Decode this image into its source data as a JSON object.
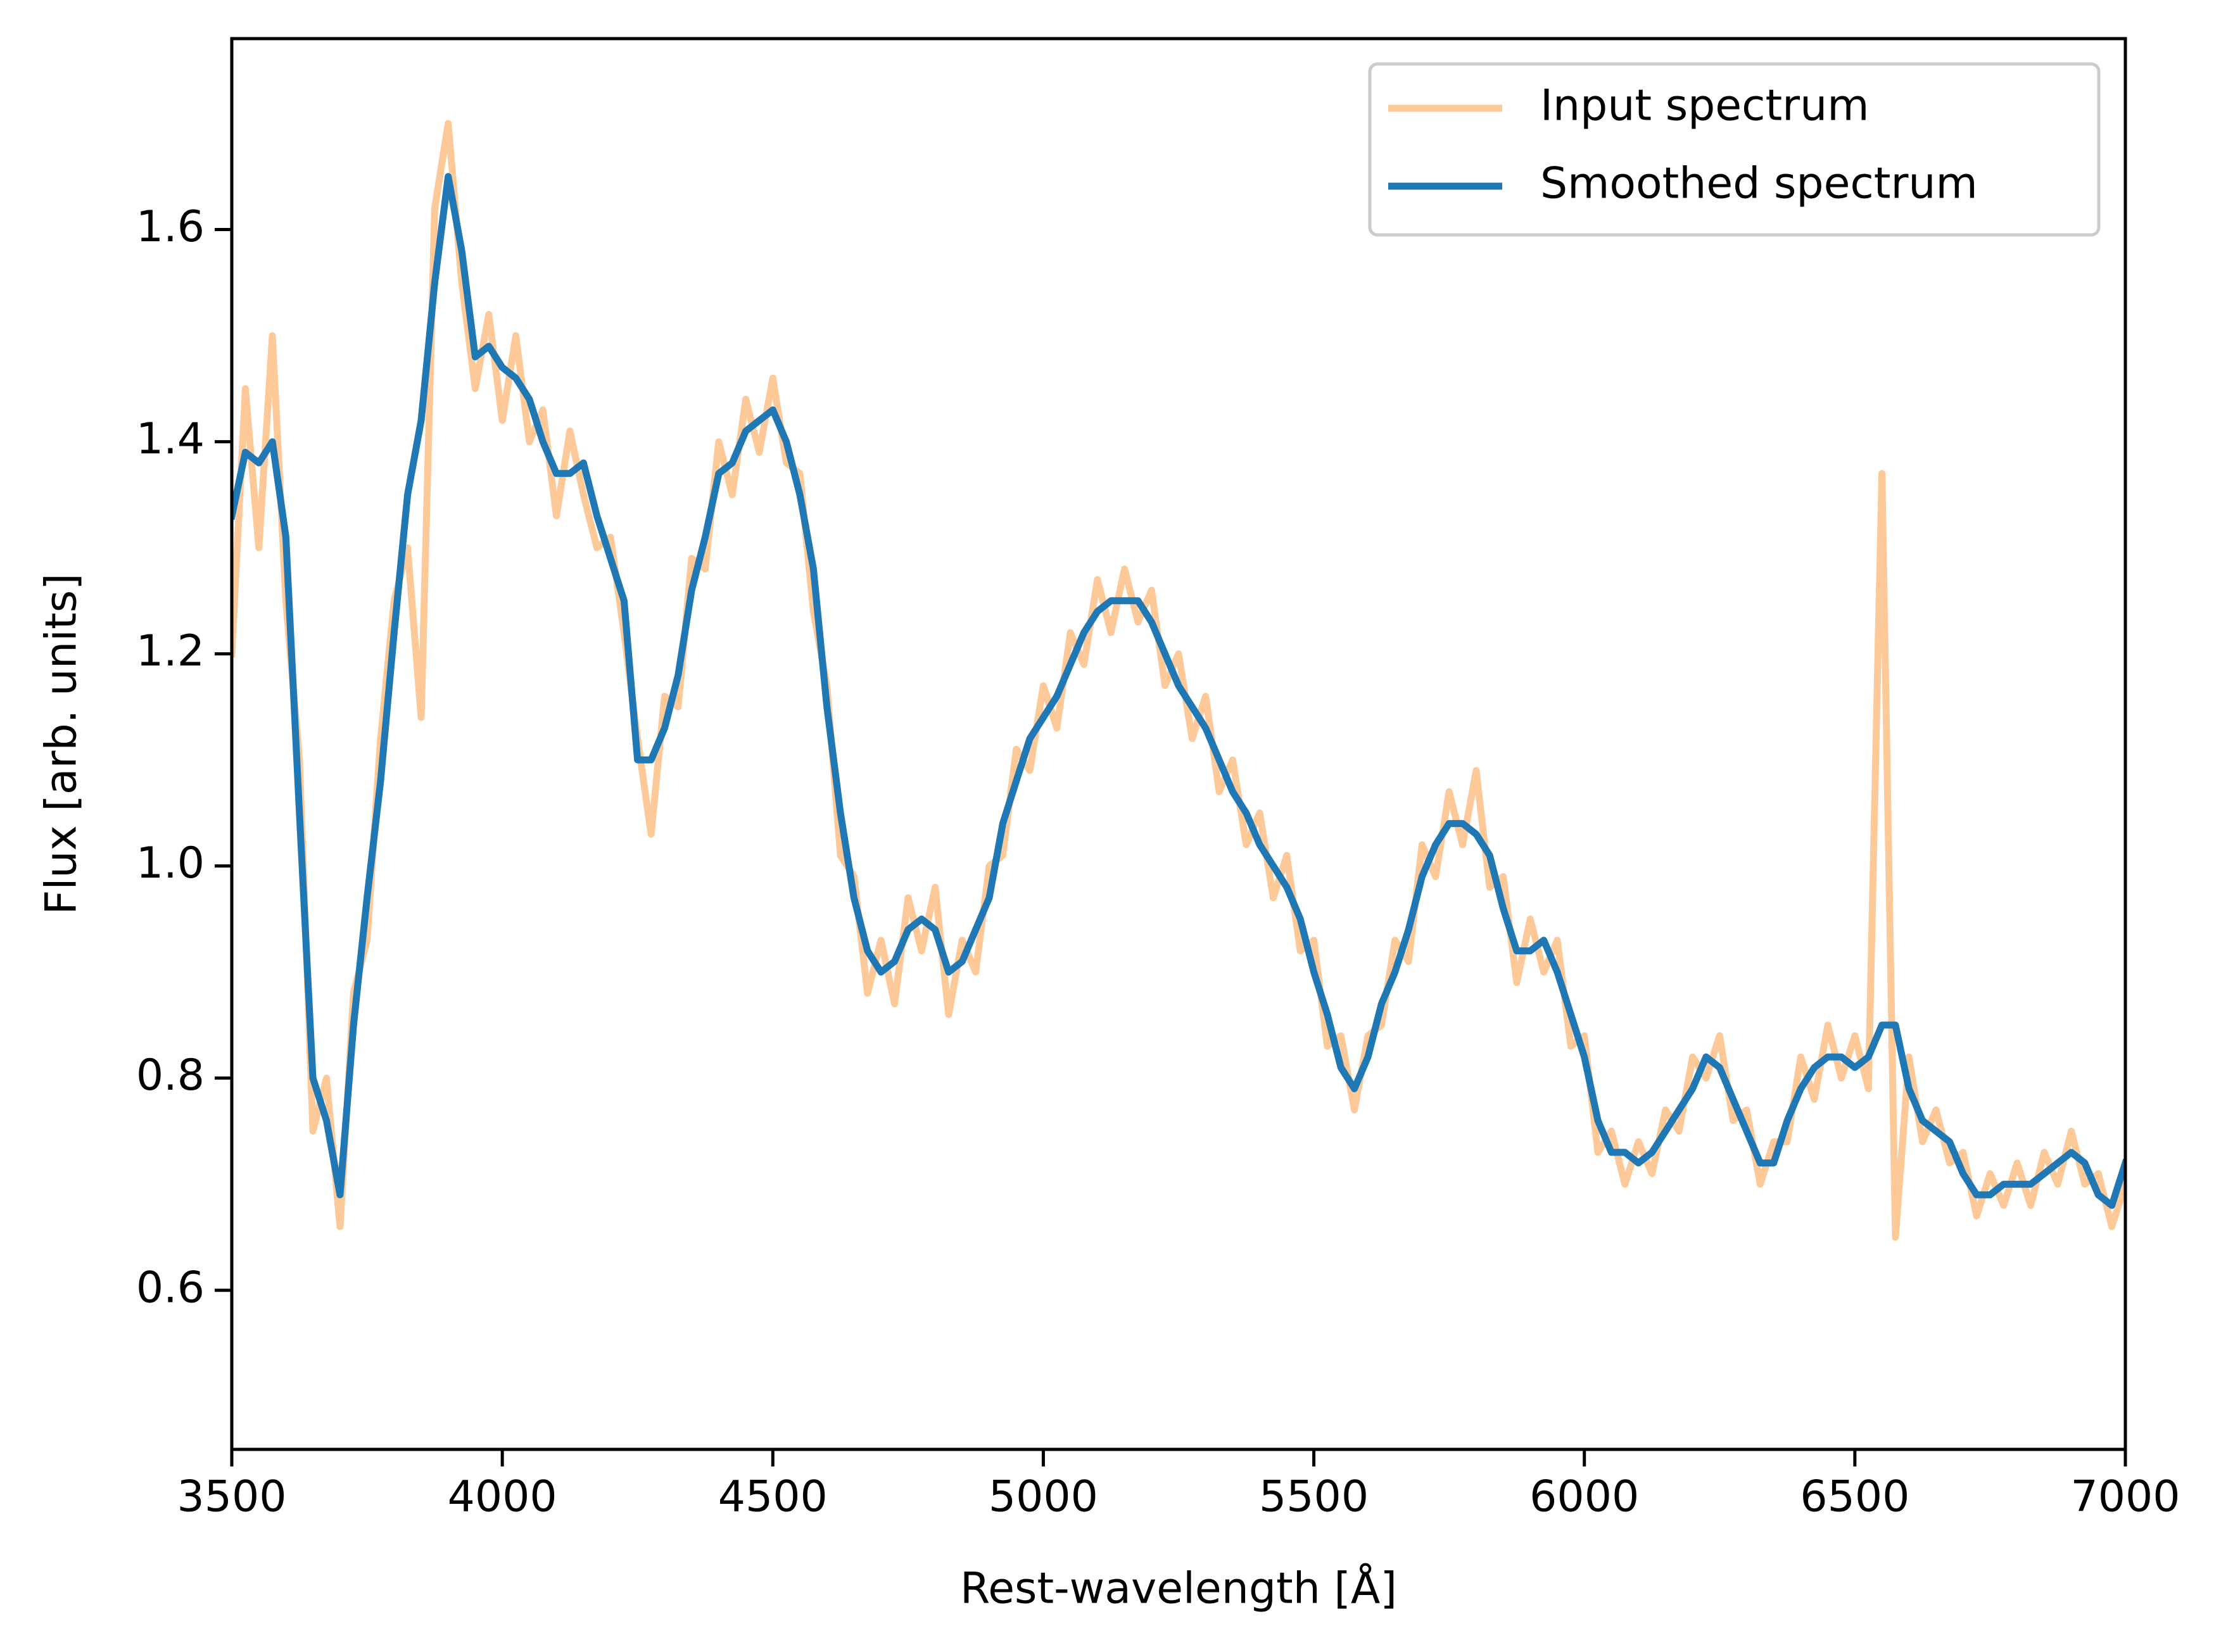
{
  "chart_data": {
    "type": "line",
    "x_label": "Rest-wavelength [Å]",
    "y_label": "Flux [arb. units]",
    "x": [
      3500,
      3525,
      3550,
      3575,
      3600,
      3625,
      3650,
      3675,
      3700,
      3725,
      3750,
      3775,
      3800,
      3825,
      3850,
      3875,
      3900,
      3925,
      3950,
      3975,
      4000,
      4025,
      4050,
      4075,
      4100,
      4125,
      4150,
      4175,
      4200,
      4225,
      4250,
      4275,
      4300,
      4325,
      4350,
      4375,
      4400,
      4425,
      4450,
      4475,
      4500,
      4525,
      4550,
      4575,
      4600,
      4625,
      4650,
      4675,
      4700,
      4725,
      4750,
      4775,
      4800,
      4825,
      4850,
      4875,
      4900,
      4925,
      4950,
      4975,
      5000,
      5025,
      5050,
      5075,
      5100,
      5125,
      5150,
      5175,
      5200,
      5225,
      5250,
      5275,
      5300,
      5325,
      5350,
      5375,
      5400,
      5425,
      5450,
      5475,
      5500,
      5525,
      5550,
      5575,
      5600,
      5625,
      5650,
      5675,
      5700,
      5725,
      5750,
      5775,
      5800,
      5825,
      5850,
      5875,
      5900,
      5925,
      5950,
      5975,
      6000,
      6025,
      6050,
      6075,
      6100,
      6125,
      6150,
      6175,
      6200,
      6225,
      6250,
      6275,
      6300,
      6325,
      6350,
      6375,
      6400,
      6425,
      6450,
      6475,
      6500,
      6525,
      6550,
      6575,
      6600,
      6625,
      6650,
      6675,
      6700,
      6725,
      6750,
      6775,
      6800,
      6825,
      6850,
      6875,
      6900,
      6925,
      6950,
      6975,
      7000
    ],
    "series": [
      {
        "name": "Input spectrum",
        "color": "#fdc999",
        "values": [
          1.2,
          1.45,
          1.3,
          1.5,
          1.25,
          1.1,
          0.75,
          0.8,
          0.66,
          0.88,
          0.93,
          1.12,
          1.25,
          1.3,
          1.14,
          1.62,
          1.7,
          1.55,
          1.45,
          1.52,
          1.42,
          1.5,
          1.4,
          1.43,
          1.33,
          1.41,
          1.35,
          1.3,
          1.31,
          1.22,
          1.12,
          1.03,
          1.16,
          1.15,
          1.29,
          1.28,
          1.4,
          1.35,
          1.44,
          1.39,
          1.46,
          1.38,
          1.37,
          1.24,
          1.17,
          1.01,
          0.99,
          0.88,
          0.93,
          0.87,
          0.97,
          0.92,
          0.98,
          0.86,
          0.93,
          0.9,
          1.0,
          1.01,
          1.11,
          1.09,
          1.17,
          1.13,
          1.22,
          1.19,
          1.27,
          1.22,
          1.28,
          1.23,
          1.26,
          1.17,
          1.2,
          1.12,
          1.16,
          1.07,
          1.1,
          1.02,
          1.05,
          0.97,
          1.01,
          0.92,
          0.93,
          0.83,
          0.84,
          0.77,
          0.84,
          0.85,
          0.93,
          0.91,
          1.02,
          0.99,
          1.07,
          1.02,
          1.09,
          0.98,
          0.99,
          0.89,
          0.95,
          0.9,
          0.93,
          0.83,
          0.84,
          0.73,
          0.75,
          0.7,
          0.74,
          0.71,
          0.77,
          0.75,
          0.82,
          0.8,
          0.84,
          0.76,
          0.77,
          0.7,
          0.74,
          0.74,
          0.82,
          0.78,
          0.85,
          0.8,
          0.84,
          0.79,
          1.37,
          0.65,
          0.82,
          0.74,
          0.77,
          0.72,
          0.73,
          0.67,
          0.71,
          0.68,
          0.72,
          0.68,
          0.73,
          0.7,
          0.75,
          0.7,
          0.71,
          0.66,
          0.7
        ]
      },
      {
        "name": "Smoothed spectrum",
        "color": "#1f77b4",
        "values": [
          1.33,
          1.39,
          1.38,
          1.4,
          1.31,
          1.05,
          0.8,
          0.76,
          0.69,
          0.85,
          0.97,
          1.08,
          1.22,
          1.35,
          1.42,
          1.55,
          1.65,
          1.58,
          1.48,
          1.49,
          1.47,
          1.46,
          1.44,
          1.4,
          1.37,
          1.37,
          1.38,
          1.33,
          1.29,
          1.25,
          1.1,
          1.1,
          1.13,
          1.18,
          1.26,
          1.31,
          1.37,
          1.38,
          1.41,
          1.42,
          1.43,
          1.4,
          1.35,
          1.28,
          1.15,
          1.05,
          0.97,
          0.92,
          0.9,
          0.91,
          0.94,
          0.95,
          0.94,
          0.9,
          0.91,
          0.94,
          0.97,
          1.04,
          1.08,
          1.12,
          1.14,
          1.16,
          1.19,
          1.22,
          1.24,
          1.25,
          1.25,
          1.25,
          1.23,
          1.2,
          1.17,
          1.15,
          1.13,
          1.1,
          1.07,
          1.05,
          1.02,
          1.0,
          0.98,
          0.95,
          0.9,
          0.86,
          0.81,
          0.79,
          0.82,
          0.87,
          0.9,
          0.94,
          0.99,
          1.02,
          1.04,
          1.04,
          1.03,
          1.01,
          0.96,
          0.92,
          0.92,
          0.93,
          0.9,
          0.86,
          0.82,
          0.76,
          0.73,
          0.73,
          0.72,
          0.73,
          0.75,
          0.77,
          0.79,
          0.82,
          0.81,
          0.78,
          0.75,
          0.72,
          0.72,
          0.76,
          0.79,
          0.81,
          0.82,
          0.82,
          0.81,
          0.82,
          0.85,
          0.85,
          0.79,
          0.76,
          0.75,
          0.74,
          0.71,
          0.69,
          0.69,
          0.7,
          0.7,
          0.7,
          0.71,
          0.72,
          0.73,
          0.72,
          0.69,
          0.68,
          0.72
        ]
      }
    ],
    "xlim": [
      3500,
      7000
    ],
    "xticks": [
      3500,
      4000,
      4500,
      5000,
      5500,
      6000,
      6500,
      7000
    ],
    "ylim": [
      0.45,
      1.78
    ],
    "yticks": [
      0.6,
      0.8,
      {
        "value": 1,
        "label": "1.0"
      },
      1.2,
      1.4,
      1.6
    ],
    "legend": "upper right",
    "grid": false
  }
}
